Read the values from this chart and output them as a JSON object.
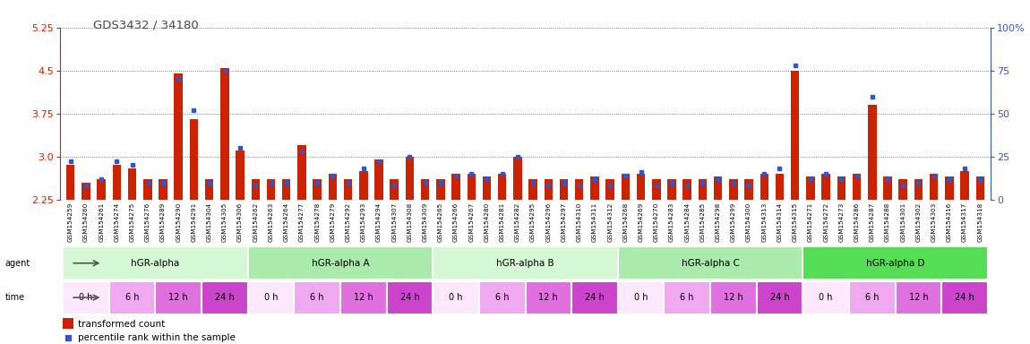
{
  "title": "GDS3432 / 34180",
  "samples": [
    "GSM154259",
    "GSM154260",
    "GSM154261",
    "GSM154274",
    "GSM154275",
    "GSM154276",
    "GSM154289",
    "GSM154290",
    "GSM154291",
    "GSM154304",
    "GSM154305",
    "GSM154306",
    "GSM154262",
    "GSM154263",
    "GSM154264",
    "GSM154277",
    "GSM154278",
    "GSM154279",
    "GSM154292",
    "GSM154293",
    "GSM154294",
    "GSM154307",
    "GSM154308",
    "GSM154309",
    "GSM154265",
    "GSM154266",
    "GSM154267",
    "GSM154280",
    "GSM154281",
    "GSM154282",
    "GSM154295",
    "GSM154296",
    "GSM154297",
    "GSM154310",
    "GSM154311",
    "GSM154312",
    "GSM154268",
    "GSM154269",
    "GSM154270",
    "GSM154283",
    "GSM154284",
    "GSM154285",
    "GSM154298",
    "GSM154299",
    "GSM154300",
    "GSM154313",
    "GSM154314",
    "GSM154315",
    "GSM154271",
    "GSM154272",
    "GSM154273",
    "GSM154286",
    "GSM154287",
    "GSM154288",
    "GSM154301",
    "GSM154302",
    "GSM154303",
    "GSM154316",
    "GSM154317",
    "GSM154318"
  ],
  "red_values": [
    2.85,
    2.55,
    2.6,
    2.85,
    2.8,
    2.6,
    2.6,
    4.45,
    3.65,
    2.6,
    4.55,
    3.1,
    2.6,
    2.6,
    2.6,
    3.2,
    2.6,
    2.7,
    2.6,
    2.75,
    2.95,
    2.6,
    3.0,
    2.6,
    2.6,
    2.7,
    2.7,
    2.65,
    2.7,
    3.0,
    2.6,
    2.6,
    2.6,
    2.6,
    2.65,
    2.6,
    2.7,
    2.7,
    2.6,
    2.6,
    2.6,
    2.6,
    2.65,
    2.6,
    2.6,
    2.7,
    2.7,
    4.5,
    2.65,
    2.7,
    2.65,
    2.7,
    3.9,
    2.65,
    2.6,
    2.6,
    2.7,
    2.65,
    2.75,
    2.65
  ],
  "blue_values": [
    22,
    8,
    12,
    22,
    20,
    10,
    10,
    70,
    52,
    10,
    75,
    30,
    8,
    10,
    10,
    28,
    10,
    14,
    10,
    18,
    22,
    8,
    25,
    10,
    10,
    14,
    15,
    12,
    15,
    25,
    10,
    8,
    10,
    8,
    12,
    8,
    14,
    16,
    8,
    10,
    8,
    10,
    12,
    10,
    8,
    15,
    18,
    78,
    12,
    15,
    12,
    14,
    60,
    12,
    8,
    10,
    14,
    12,
    18,
    12
  ],
  "ylim_left": [
    2.25,
    5.25
  ],
  "ylim_right": [
    0,
    100
  ],
  "yticks_left": [
    2.25,
    3.0,
    3.75,
    4.5,
    5.25
  ],
  "yticks_right": [
    0,
    25,
    50,
    75,
    100
  ],
  "ytick_labels_right": [
    "0",
    "25",
    "50",
    "75",
    "100%"
  ],
  "groups": [
    {
      "label": "hGR-alpha",
      "start": 0,
      "end": 12,
      "color": "#d4f7d4"
    },
    {
      "label": "hGR-alpha A",
      "start": 12,
      "end": 24,
      "color": "#aaeaaa"
    },
    {
      "label": "hGR-alpha B",
      "start": 24,
      "end": 36,
      "color": "#d4f7d4"
    },
    {
      "label": "hGR-alpha C",
      "start": 36,
      "end": 48,
      "color": "#aaeaaa"
    },
    {
      "label": "hGR-alpha D",
      "start": 48,
      "end": 60,
      "color": "#55dd55"
    }
  ],
  "time_labels": [
    {
      "label": "0 h",
      "color": "#fde8fd"
    },
    {
      "label": "6 h",
      "color": "#f0a8f0"
    },
    {
      "label": "12 h",
      "color": "#e070e0"
    },
    {
      "label": "24 h",
      "color": "#cc44cc"
    }
  ],
  "bar_color": "#cc2200",
  "dot_color": "#3355cc",
  "title_color": "#444444",
  "axis_left_color": "#cc2200",
  "axis_right_color": "#3355cc",
  "background_color": "#ffffff",
  "bar_width": 0.55,
  "base_value": 2.25
}
